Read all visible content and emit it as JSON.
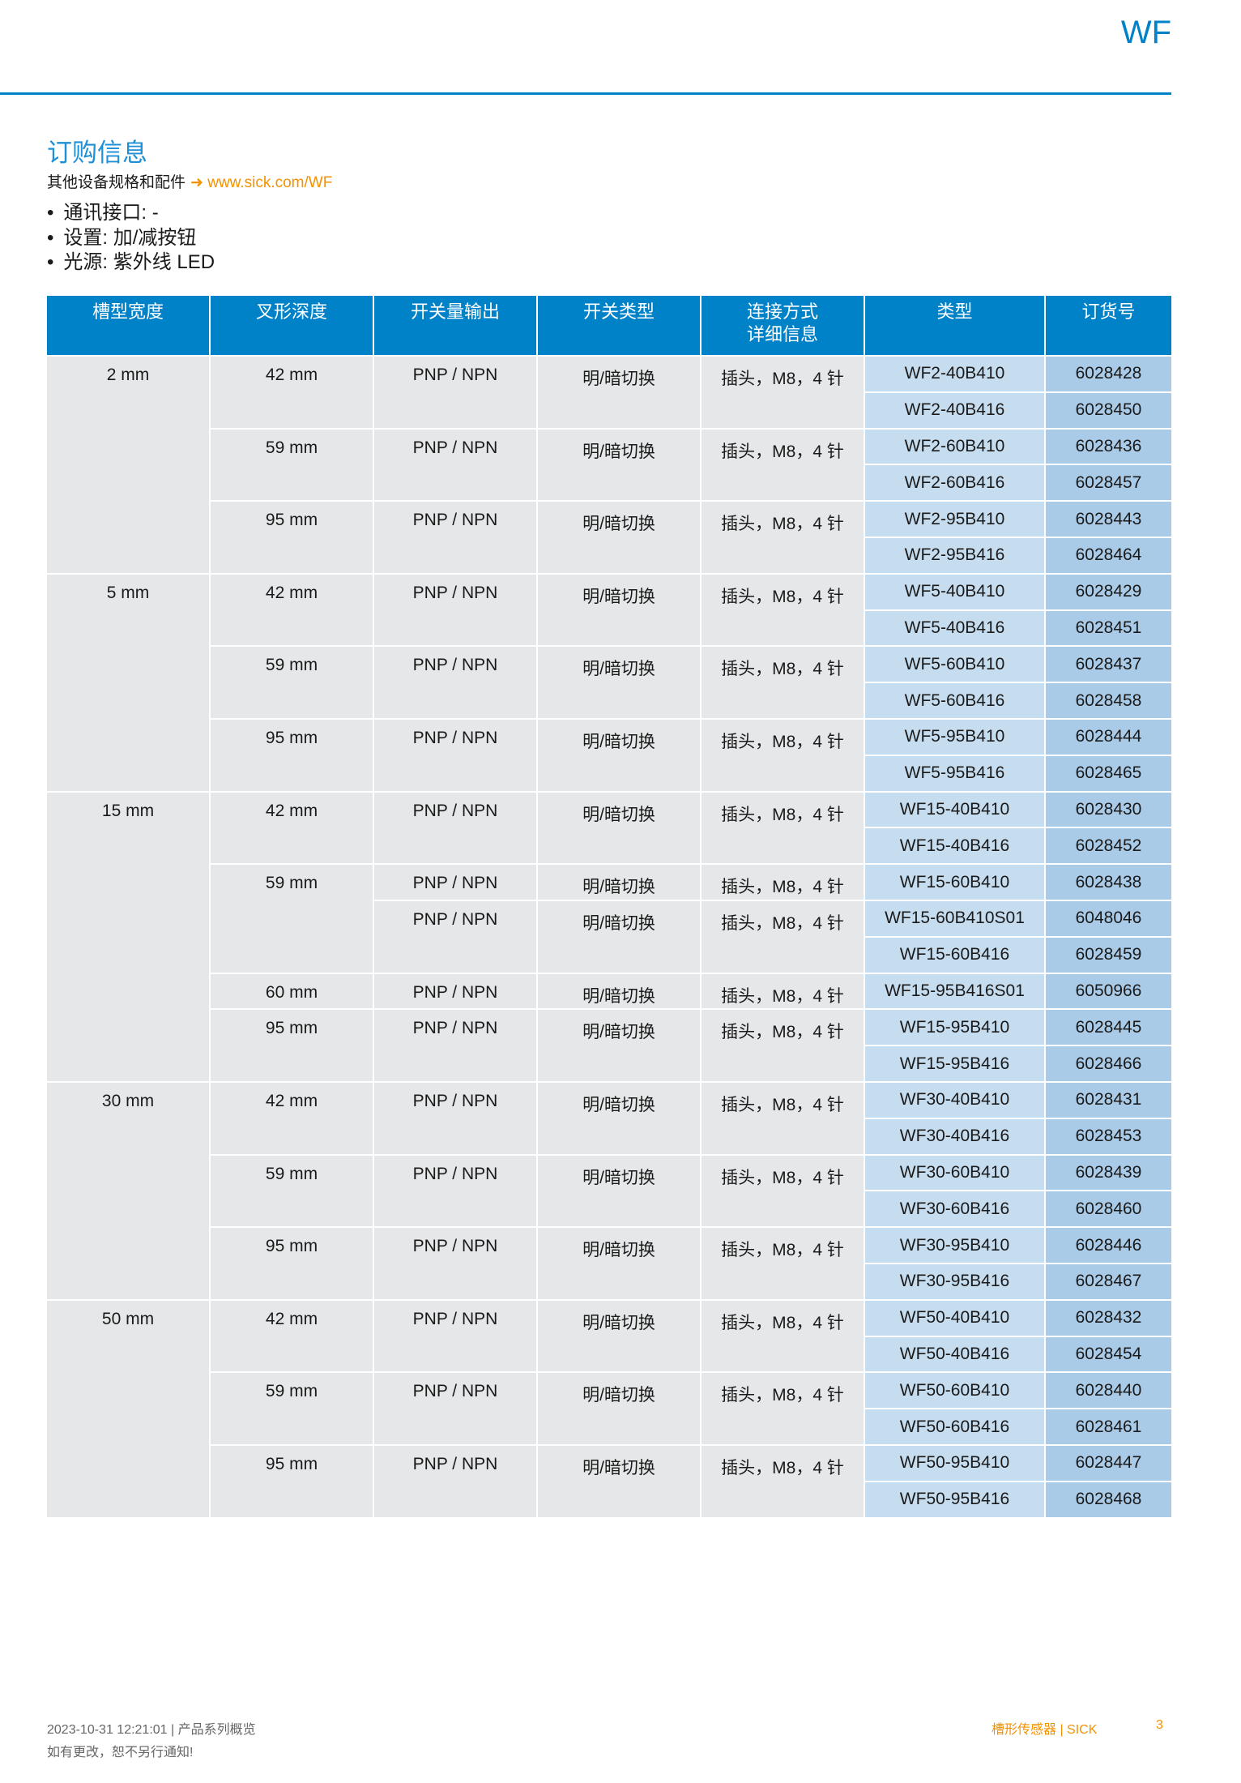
{
  "header": {
    "brand": "WF"
  },
  "section": {
    "title": "订购信息",
    "subtitle": "其他设备规格和配件",
    "arrow": "➜",
    "link": "www.sick.com/WF"
  },
  "features": [
    "通讯接口: -",
    "设置: 加/减按钮",
    "光源: 紫外线 LED"
  ],
  "table": {
    "headers": [
      "槽型宽度",
      "叉形深度",
      "开关量输出",
      "开关类型",
      "连接方式\n详细信息",
      "类型",
      "订货号"
    ],
    "groups": [
      {
        "width": "2 mm",
        "depths": [
          {
            "depth": "42 mm",
            "variants": [
              {
                "output": "PNP / NPN",
                "switching": "明/暗切换",
                "connection": "插头，M8，4 针",
                "items": [
                  {
                    "type": "WF2-40B410",
                    "order": "6028428"
                  },
                  {
                    "type": "WF2-40B416",
                    "order": "6028450"
                  }
                ]
              }
            ]
          },
          {
            "depth": "59 mm",
            "variants": [
              {
                "output": "PNP / NPN",
                "switching": "明/暗切换",
                "connection": "插头，M8，4 针",
                "items": [
                  {
                    "type": "WF2-60B410",
                    "order": "6028436"
                  },
                  {
                    "type": "WF2-60B416",
                    "order": "6028457"
                  }
                ]
              }
            ]
          },
          {
            "depth": "95 mm",
            "variants": [
              {
                "output": "PNP / NPN",
                "switching": "明/暗切换",
                "connection": "插头，M8，4 针",
                "items": [
                  {
                    "type": "WF2-95B410",
                    "order": "6028443"
                  },
                  {
                    "type": "WF2-95B416",
                    "order": "6028464"
                  }
                ]
              }
            ]
          }
        ]
      },
      {
        "width": "5 mm",
        "depths": [
          {
            "depth": "42 mm",
            "variants": [
              {
                "output": "PNP / NPN",
                "switching": "明/暗切换",
                "connection": "插头，M8，4 针",
                "items": [
                  {
                    "type": "WF5-40B410",
                    "order": "6028429"
                  },
                  {
                    "type": "WF5-40B416",
                    "order": "6028451"
                  }
                ]
              }
            ]
          },
          {
            "depth": "59 mm",
            "variants": [
              {
                "output": "PNP / NPN",
                "switching": "明/暗切换",
                "connection": "插头，M8，4 针",
                "items": [
                  {
                    "type": "WF5-60B410",
                    "order": "6028437"
                  },
                  {
                    "type": "WF5-60B416",
                    "order": "6028458"
                  }
                ]
              }
            ]
          },
          {
            "depth": "95 mm",
            "variants": [
              {
                "output": "PNP / NPN",
                "switching": "明/暗切换",
                "connection": "插头，M8，4 针",
                "items": [
                  {
                    "type": "WF5-95B410",
                    "order": "6028444"
                  },
                  {
                    "type": "WF5-95B416",
                    "order": "6028465"
                  }
                ]
              }
            ]
          }
        ]
      },
      {
        "width": "15 mm",
        "depths": [
          {
            "depth": "42 mm",
            "variants": [
              {
                "output": "PNP / NPN",
                "switching": "明/暗切换",
                "connection": "插头，M8，4 针",
                "items": [
                  {
                    "type": "WF15-40B410",
                    "order": "6028430"
                  },
                  {
                    "type": "WF15-40B416",
                    "order": "6028452"
                  }
                ]
              }
            ]
          },
          {
            "depth": "59 mm",
            "variants": [
              {
                "output": "PNP / NPN",
                "switching": "明/暗切换",
                "connection": "插头，M8，4 针",
                "items": [
                  {
                    "type": "WF15-60B410",
                    "order": "6028438"
                  }
                ]
              },
              {
                "output": "PNP / NPN",
                "switching": "明/暗切换",
                "connection": "插头，M8，4 针",
                "items": [
                  {
                    "type": "WF15-60B410S01",
                    "order": "6048046"
                  },
                  {
                    "type": "WF15-60B416",
                    "order": "6028459"
                  }
                ]
              }
            ]
          },
          {
            "depth": "60 mm",
            "variants": [
              {
                "output": "PNP / NPN",
                "switching": "明/暗切换",
                "connection": "插头，M8，4 针",
                "items": [
                  {
                    "type": "WF15-95B416S01",
                    "order": "6050966"
                  }
                ]
              }
            ]
          },
          {
            "depth": "95 mm",
            "variants": [
              {
                "output": "PNP / NPN",
                "switching": "明/暗切换",
                "connection": "插头，M8，4 针",
                "items": [
                  {
                    "type": "WF15-95B410",
                    "order": "6028445"
                  },
                  {
                    "type": "WF15-95B416",
                    "order": "6028466"
                  }
                ]
              }
            ]
          }
        ]
      },
      {
        "width": "30 mm",
        "depths": [
          {
            "depth": "42 mm",
            "variants": [
              {
                "output": "PNP / NPN",
                "switching": "明/暗切换",
                "connection": "插头，M8，4 针",
                "items": [
                  {
                    "type": "WF30-40B410",
                    "order": "6028431"
                  },
                  {
                    "type": "WF30-40B416",
                    "order": "6028453"
                  }
                ]
              }
            ]
          },
          {
            "depth": "59 mm",
            "variants": [
              {
                "output": "PNP / NPN",
                "switching": "明/暗切换",
                "connection": "插头，M8，4 针",
                "items": [
                  {
                    "type": "WF30-60B410",
                    "order": "6028439"
                  },
                  {
                    "type": "WF30-60B416",
                    "order": "6028460"
                  }
                ]
              }
            ]
          },
          {
            "depth": "95 mm",
            "variants": [
              {
                "output": "PNP / NPN",
                "switching": "明/暗切换",
                "connection": "插头，M8，4 针",
                "items": [
                  {
                    "type": "WF30-95B410",
                    "order": "6028446"
                  },
                  {
                    "type": "WF30-95B416",
                    "order": "6028467"
                  }
                ]
              }
            ]
          }
        ]
      },
      {
        "width": "50 mm",
        "depths": [
          {
            "depth": "42 mm",
            "variants": [
              {
                "output": "PNP / NPN",
                "switching": "明/暗切换",
                "connection": "插头，M8，4 针",
                "items": [
                  {
                    "type": "WF50-40B410",
                    "order": "6028432"
                  },
                  {
                    "type": "WF50-40B416",
                    "order": "6028454"
                  }
                ]
              }
            ]
          },
          {
            "depth": "59 mm",
            "variants": [
              {
                "output": "PNP / NPN",
                "switching": "明/暗切换",
                "connection": "插头，M8，4 针",
                "items": [
                  {
                    "type": "WF50-60B410",
                    "order": "6028440"
                  },
                  {
                    "type": "WF50-60B416",
                    "order": "6028461"
                  }
                ]
              }
            ]
          },
          {
            "depth": "95 mm",
            "variants": [
              {
                "output": "PNP / NPN",
                "switching": "明/暗切换",
                "connection": "插头，M8，4 针",
                "items": [
                  {
                    "type": "WF50-95B410",
                    "order": "6028447"
                  },
                  {
                    "type": "WF50-95B416",
                    "order": "6028468"
                  }
                ]
              }
            ]
          }
        ]
      }
    ]
  },
  "footer": {
    "timestamp": "2023-10-31 12:21:01 | 产品系列概览",
    "notice": "如有更改，恕不另行通知!",
    "product": "槽形传感器 | SICK",
    "page": "3"
  },
  "colors": {
    "accent": "#0082c8",
    "link": "#f39200",
    "cell_gray": "#e6e7e8",
    "type_bg": "#c6dcef",
    "order_bg": "#a9cbe8"
  }
}
